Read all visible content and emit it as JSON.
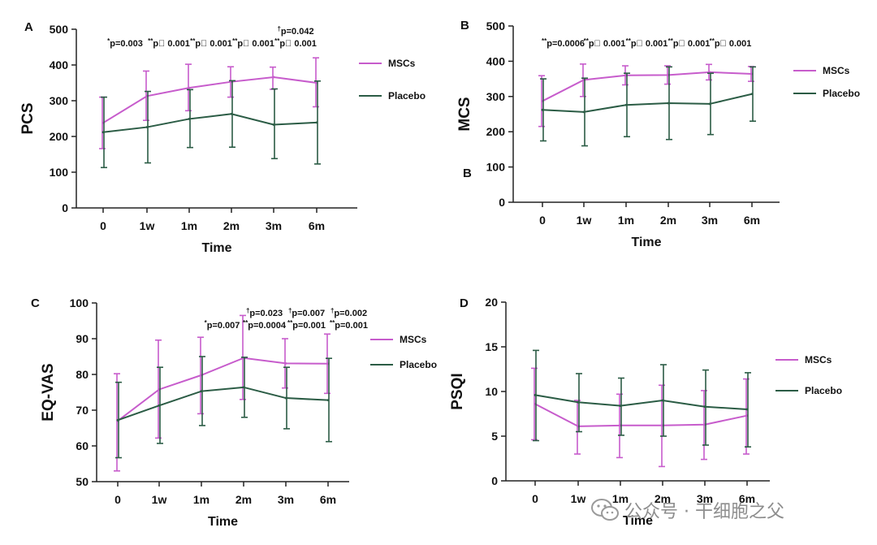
{
  "chart_data": [
    {
      "type": "line",
      "panel_label": "A",
      "xlabel": "Time",
      "ylabel": "PCS",
      "categories": [
        "0",
        "1w",
        "1m",
        "2m",
        "3m",
        "6m"
      ],
      "ylim": [
        0,
        500
      ],
      "yticks": [
        0,
        100,
        200,
        300,
        400,
        500
      ],
      "grid": false,
      "legend": "right",
      "series": [
        {
          "name": "MSCs",
          "color": "#c75ccc",
          "values": [
            238,
            313,
            336,
            353,
            366,
            350
          ],
          "err_low": [
            166,
            245,
            272,
            310,
            332,
            283
          ],
          "err_high": [
            310,
            383,
            402,
            395,
            394,
            420
          ]
        },
        {
          "name": "Placebo",
          "color": "#2b5c45",
          "values": [
            212,
            226,
            249,
            263,
            233,
            239
          ],
          "err_low": [
            113,
            126,
            169,
            170,
            138,
            123
          ],
          "err_high": [
            310,
            326,
            331,
            356,
            333,
            355
          ]
        }
      ],
      "annotations": [
        {
          "col": 0,
          "lines": [
            {
              "mark": "*",
              "text": "p=0.003"
            }
          ]
        },
        {
          "col": 1,
          "lines": [
            {
              "mark": "**",
              "text": "p\u0000 0.001"
            }
          ]
        },
        {
          "col": 2,
          "lines": [
            {
              "mark": "**",
              "text": "p\u0000 0.001"
            }
          ]
        },
        {
          "col": 3,
          "lines": [
            {
              "mark": "**",
              "text": "p\u0000 0.001"
            }
          ]
        },
        {
          "col": 4,
          "lines": [
            {
              "mark": "†",
              "text": "p=0.042"
            },
            {
              "mark": "**",
              "text": "p\u0000 0.001"
            }
          ]
        }
      ]
    },
    {
      "type": "line",
      "panel_label": "B",
      "extra_label": "B",
      "xlabel": "Time",
      "ylabel": "MCS",
      "categories": [
        "0",
        "1w",
        "1m",
        "2m",
        "3m",
        "6m"
      ],
      "ylim": [
        0,
        500
      ],
      "yticks": [
        0,
        100,
        200,
        300,
        400,
        500
      ],
      "grid": false,
      "legend": "right",
      "series": [
        {
          "name": "MSCs",
          "color": "#c75ccc",
          "values": [
            287,
            347,
            360,
            361,
            369,
            364
          ],
          "err_low": [
            215,
            300,
            333,
            335,
            347,
            343
          ],
          "err_high": [
            359,
            392,
            387,
            387,
            391,
            385
          ]
        },
        {
          "name": "Placebo",
          "color": "#2b5c45",
          "values": [
            262,
            256,
            276,
            281,
            279,
            307
          ],
          "err_low": [
            174,
            160,
            186,
            178,
            192,
            230
          ],
          "err_high": [
            350,
            352,
            366,
            384,
            366,
            384
          ]
        }
      ],
      "annotations": [
        {
          "col": 0,
          "lines": [
            {
              "mark": "**",
              "text": "p=0.0006"
            }
          ]
        },
        {
          "col": 1,
          "lines": [
            {
              "mark": "**",
              "text": "p\u0000 0.001"
            }
          ]
        },
        {
          "col": 2,
          "lines": [
            {
              "mark": "**",
              "text": "p\u0000 0.001"
            }
          ]
        },
        {
          "col": 3,
          "lines": [
            {
              "mark": "**",
              "text": "p\u0000 0.001"
            }
          ]
        },
        {
          "col": 4,
          "lines": [
            {
              "mark": "**",
              "text": "p\u0000 0.001"
            }
          ]
        }
      ]
    },
    {
      "type": "line",
      "panel_label": "C",
      "xlabel": "Time",
      "ylabel": "EQ-VAS",
      "categories": [
        "0",
        "1w",
        "1m",
        "2m",
        "3m",
        "6m"
      ],
      "ylim": [
        50,
        100
      ],
      "yticks": [
        50,
        60,
        70,
        80,
        90,
        100
      ],
      "grid": false,
      "legend": "right",
      "series": [
        {
          "name": "MSCs",
          "color": "#c75ccc",
          "values": [
            67,
            75.8,
            79.8,
            84.6,
            83.1,
            83.0
          ],
          "err_low": [
            53,
            62.2,
            69.0,
            73.0,
            76.2,
            74.7
          ],
          "err_high": [
            80.2,
            89.6,
            90.4,
            96.5,
            90.0,
            91.3
          ]
        },
        {
          "name": "Placebo",
          "color": "#2b5c45",
          "values": [
            67.2,
            71.3,
            75.3,
            76.4,
            73.4,
            72.8
          ],
          "err_low": [
            56.7,
            60.7,
            65.7,
            68.0,
            64.8,
            61.2
          ],
          "err_high": [
            77.8,
            82.0,
            85.0,
            84.8,
            82.0,
            84.5
          ]
        }
      ],
      "annotations": [
        {
          "col": 2,
          "lines": [
            {
              "mark": "*",
              "text": "p=0.007"
            }
          ]
        },
        {
          "col": 3,
          "lines": [
            {
              "mark": "†",
              "text": "p=0.023"
            },
            {
              "mark": "**",
              "text": "p=0.0004"
            }
          ]
        },
        {
          "col": 4,
          "lines": [
            {
              "mark": "†",
              "text": "p=0.007"
            },
            {
              "mark": "**",
              "text": "p=0.001"
            }
          ]
        },
        {
          "col": 5,
          "lines": [
            {
              "mark": "†",
              "text": "p=0.002"
            },
            {
              "mark": "**",
              "text": "p=0.001"
            }
          ]
        }
      ]
    },
    {
      "type": "line",
      "panel_label": "D",
      "xlabel": "Time",
      "ylabel": "PSQI",
      "categories": [
        "0",
        "1w",
        "1m",
        "2m",
        "3m",
        "6m"
      ],
      "ylim": [
        0,
        20
      ],
      "yticks": [
        0,
        5,
        10,
        15,
        20
      ],
      "grid": false,
      "legend": "right",
      "series": [
        {
          "name": "MSCs",
          "color": "#c75ccc",
          "values": [
            8.6,
            6.1,
            6.2,
            6.2,
            6.3,
            7.3
          ],
          "err_low": [
            4.6,
            3.0,
            2.6,
            1.6,
            2.4,
            3.0
          ],
          "err_high": [
            12.6,
            9.0,
            9.7,
            10.7,
            10.1,
            11.4
          ]
        },
        {
          "name": "Placebo",
          "color": "#2b5c45",
          "values": [
            9.6,
            8.8,
            8.4,
            9.0,
            8.3,
            8.0
          ],
          "err_low": [
            4.5,
            5.5,
            5.1,
            5.0,
            4.0,
            3.8
          ],
          "err_high": [
            14.6,
            12.0,
            11.5,
            13.0,
            12.4,
            12.1
          ]
        }
      ],
      "annotations": []
    }
  ],
  "watermark": {
    "text": "公众号 · 干细胞之父",
    "icon": "wechat-logo-icon"
  }
}
